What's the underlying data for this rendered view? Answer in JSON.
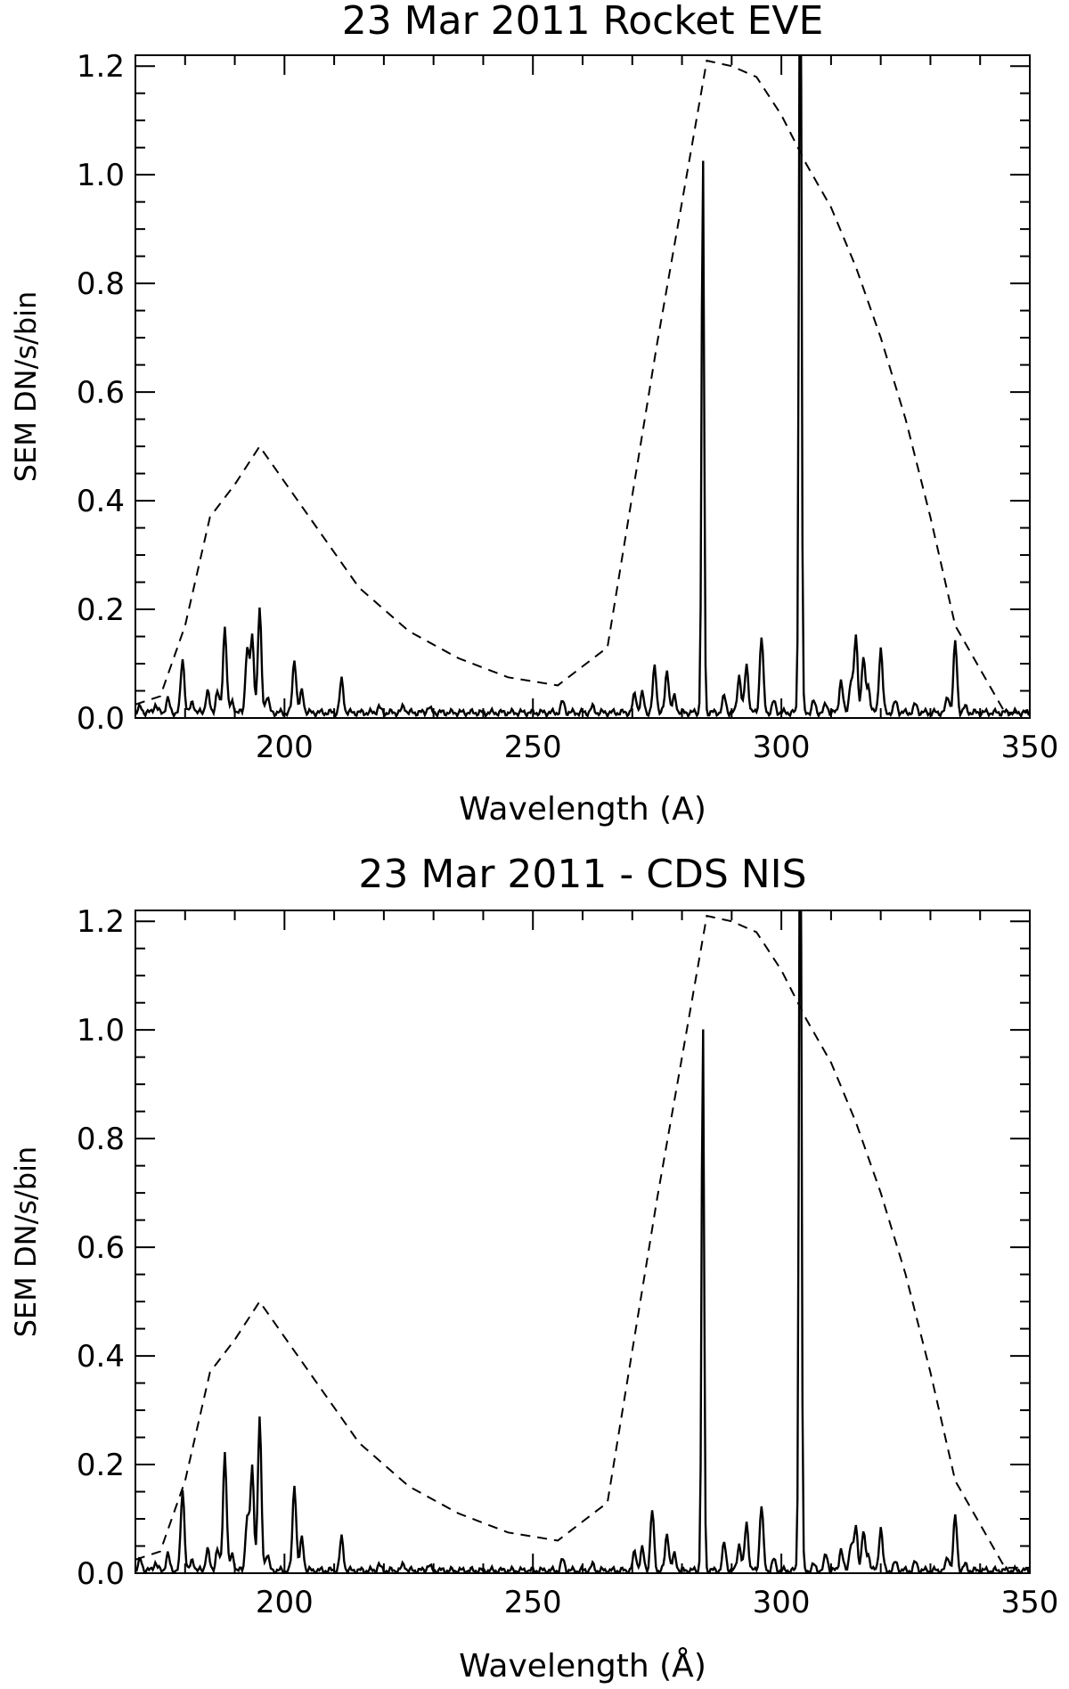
{
  "chart_data": [
    {
      "type": "line",
      "title": "23 Mar 2011 Rocket EVE",
      "xlabel": "Wavelength (A)",
      "ylabel": "SEM DN/s/bin",
      "xlim": [
        170,
        350
      ],
      "ylim": [
        0,
        1.22
      ],
      "xticks": [
        {
          "v": 200,
          "label": "200"
        },
        {
          "v": 250,
          "label": "250"
        },
        {
          "v": 300,
          "label": "300"
        },
        {
          "v": 350,
          "label": "350"
        }
      ],
      "yticks": [
        {
          "v": 0.0,
          "label": "0.0"
        },
        {
          "v": 0.2,
          "label": "0.2"
        },
        {
          "v": 0.4,
          "label": "0.4"
        },
        {
          "v": 0.6,
          "label": "0.6"
        },
        {
          "v": 0.8,
          "label": "0.8"
        },
        {
          "v": 1.0,
          "label": "1.0"
        },
        {
          "v": 1.2,
          "label": "1.2"
        }
      ],
      "grid": false,
      "series": [
        {
          "style": "solid",
          "baseline": 0.01,
          "peaks": [
            [
              171,
              0.01
            ],
            [
              174,
              0.015
            ],
            [
              176.5,
              0.025
            ],
            [
              179.5,
              0.1
            ],
            [
              181.5,
              0.02
            ],
            [
              184.5,
              0.04
            ],
            [
              186.5,
              0.04
            ],
            [
              188,
              0.16
            ],
            [
              189.5,
              0.02
            ],
            [
              192.5,
              0.12
            ],
            [
              193.5,
              0.14
            ],
            [
              195,
              0.19
            ],
            [
              196.5,
              0.03
            ],
            [
              202,
              0.1
            ],
            [
              203.5,
              0.04
            ],
            [
              211.5,
              0.06
            ],
            [
              219,
              0.01
            ],
            [
              224,
              0.012
            ],
            [
              229,
              0.01
            ],
            [
              256,
              0.02
            ],
            [
              262,
              0.01
            ],
            [
              270.5,
              0.035
            ],
            [
              272,
              0.035
            ],
            [
              274.5,
              0.085
            ],
            [
              277,
              0.08
            ],
            [
              278.5,
              0.03
            ],
            [
              284.2,
              1.03
            ],
            [
              288.5,
              0.03
            ],
            [
              291.5,
              0.07
            ],
            [
              293,
              0.09
            ],
            [
              296,
              0.14
            ],
            [
              298.5,
              0.02
            ],
            [
              303.8,
              1.6
            ],
            [
              306.5,
              0.02
            ],
            [
              309,
              0.015
            ],
            [
              312,
              0.06
            ],
            [
              314,
              0.06
            ],
            [
              315,
              0.14
            ],
            [
              316.5,
              0.1
            ],
            [
              317.5,
              0.05
            ],
            [
              320,
              0.12
            ],
            [
              323,
              0.02
            ],
            [
              327,
              0.015
            ],
            [
              333.5,
              0.03
            ],
            [
              335,
              0.13
            ],
            [
              337,
              0.01
            ]
          ]
        },
        {
          "style": "dashed",
          "points": [
            [
              170,
              0.025
            ],
            [
              175,
              0.04
            ],
            [
              180,
              0.17
            ],
            [
              185,
              0.37
            ],
            [
              190,
              0.43
            ],
            [
              195,
              0.5
            ],
            [
              205,
              0.37
            ],
            [
              215,
              0.24
            ],
            [
              225,
              0.16
            ],
            [
              235,
              0.11
            ],
            [
              245,
              0.075
            ],
            [
              255,
              0.06
            ],
            [
              265,
              0.13
            ],
            [
              275,
              0.69
            ],
            [
              280,
              0.95
            ],
            [
              285,
              1.21
            ],
            [
              290,
              1.2
            ],
            [
              295,
              1.18
            ],
            [
              300,
              1.11
            ],
            [
              305,
              1.02
            ],
            [
              310,
              0.94
            ],
            [
              315,
              0.83
            ],
            [
              320,
              0.7
            ],
            [
              325,
              0.55
            ],
            [
              330,
              0.37
            ],
            [
              335,
              0.17
            ],
            [
              340,
              0.09
            ],
            [
              345,
              0.01
            ],
            [
              350,
              0.01
            ]
          ]
        }
      ]
    },
    {
      "type": "line",
      "title": "23 Mar 2011 - CDS NIS",
      "xlabel": "Wavelength (Å)",
      "ylabel": "SEM DN/s/bin",
      "xlim": [
        170,
        350
      ],
      "ylim": [
        0,
        1.22
      ],
      "xticks": [
        {
          "v": 200,
          "label": "200"
        },
        {
          "v": 250,
          "label": "250"
        },
        {
          "v": 300,
          "label": "300"
        },
        {
          "v": 350,
          "label": "350"
        }
      ],
      "yticks": [
        {
          "v": 0.0,
          "label": "0.0"
        },
        {
          "v": 0.2,
          "label": "0.2"
        },
        {
          "v": 0.4,
          "label": "0.4"
        },
        {
          "v": 0.6,
          "label": "0.6"
        },
        {
          "v": 0.8,
          "label": "0.8"
        },
        {
          "v": 1.0,
          "label": "1.0"
        },
        {
          "v": 1.2,
          "label": "1.2"
        }
      ],
      "grid": false,
      "series": [
        {
          "style": "solid",
          "baseline": 0.005,
          "peaks": [
            [
              171,
              0.02
            ],
            [
              174,
              0.015
            ],
            [
              176.5,
              0.03
            ],
            [
              179.5,
              0.15
            ],
            [
              181.5,
              0.02
            ],
            [
              184.5,
              0.04
            ],
            [
              186.5,
              0.04
            ],
            [
              188,
              0.22
            ],
            [
              189.5,
              0.03
            ],
            [
              192.5,
              0.1
            ],
            [
              193.5,
              0.19
            ],
            [
              195,
              0.28
            ],
            [
              196.5,
              0.03
            ],
            [
              202,
              0.16
            ],
            [
              203.5,
              0.06
            ],
            [
              211.5,
              0.06
            ],
            [
              219,
              0.01
            ],
            [
              224,
              0.012
            ],
            [
              229,
              0.01
            ],
            [
              256,
              0.02
            ],
            [
              262,
              0.01
            ],
            [
              270.5,
              0.035
            ],
            [
              272,
              0.04
            ],
            [
              274,
              0.11
            ],
            [
              277,
              0.07
            ],
            [
              278.5,
              0.03
            ],
            [
              284.2,
              1.01
            ],
            [
              288.5,
              0.05
            ],
            [
              291.5,
              0.05
            ],
            [
              293,
              0.09
            ],
            [
              296,
              0.12
            ],
            [
              298.5,
              0.02
            ],
            [
              303.8,
              1.6
            ],
            [
              306.5,
              0.01
            ],
            [
              309,
              0.03
            ],
            [
              312,
              0.04
            ],
            [
              314,
              0.05
            ],
            [
              315,
              0.08
            ],
            [
              316.5,
              0.07
            ],
            [
              317.5,
              0.03
            ],
            [
              320,
              0.08
            ],
            [
              323,
              0.015
            ],
            [
              327,
              0.015
            ],
            [
              333.5,
              0.025
            ],
            [
              335,
              0.1
            ],
            [
              337,
              0.01
            ]
          ]
        },
        {
          "style": "dashed",
          "points": [
            [
              170,
              0.025
            ],
            [
              175,
              0.04
            ],
            [
              180,
              0.17
            ],
            [
              185,
              0.37
            ],
            [
              190,
              0.43
            ],
            [
              195,
              0.5
            ],
            [
              205,
              0.37
            ],
            [
              215,
              0.24
            ],
            [
              225,
              0.16
            ],
            [
              235,
              0.11
            ],
            [
              245,
              0.075
            ],
            [
              255,
              0.06
            ],
            [
              265,
              0.13
            ],
            [
              275,
              0.69
            ],
            [
              280,
              0.95
            ],
            [
              285,
              1.21
            ],
            [
              290,
              1.2
            ],
            [
              295,
              1.18
            ],
            [
              300,
              1.11
            ],
            [
              305,
              1.02
            ],
            [
              310,
              0.94
            ],
            [
              315,
              0.83
            ],
            [
              320,
              0.7
            ],
            [
              325,
              0.55
            ],
            [
              330,
              0.37
            ],
            [
              335,
              0.17
            ],
            [
              340,
              0.09
            ],
            [
              345,
              0.01
            ],
            [
              350,
              0.01
            ]
          ]
        }
      ]
    }
  ]
}
